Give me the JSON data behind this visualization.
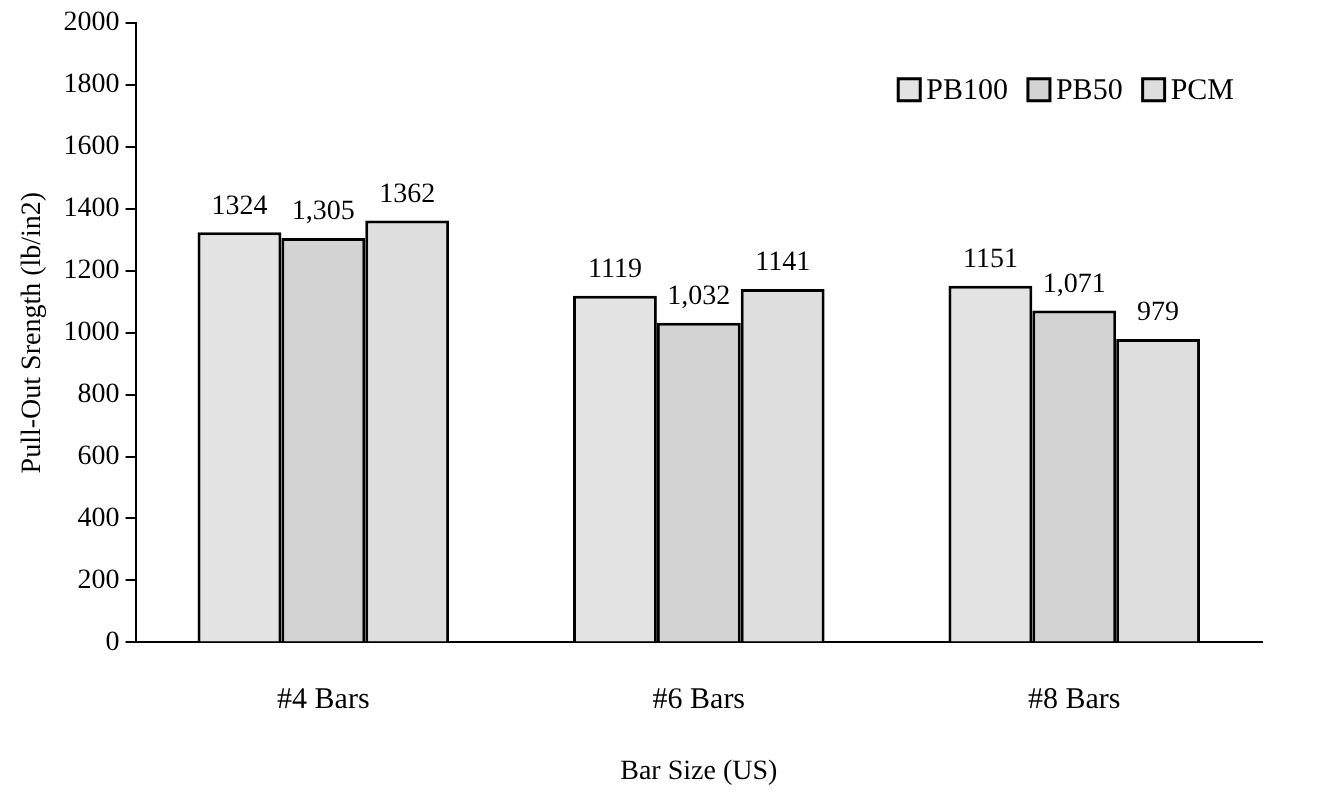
{
  "chart_data": {
    "type": "bar",
    "xlabel": "Bar Size (US)",
    "ylabel": "Pull-Out Srength (lb/in2)",
    "categories": [
      "#4 Bars",
      "#6 Bars",
      "#8 Bars"
    ],
    "series": [
      {
        "name": "PB100",
        "color": "#e3e3e3",
        "values": [
          1324,
          1119,
          1151
        ],
        "value_labels": [
          "1324",
          "1119",
          "1151"
        ]
      },
      {
        "name": "PB50",
        "color": "#d3d3d3",
        "values": [
          1305,
          1032,
          1071
        ],
        "value_labels": [
          "1,305",
          "1,032",
          "1,071"
        ]
      },
      {
        "name": "PCM",
        "color": "#dedede",
        "values": [
          1362,
          1141,
          979
        ],
        "value_labels": [
          "1362",
          "1141",
          "979"
        ]
      }
    ],
    "ylim": [
      0,
      2000
    ],
    "yticks": [
      0,
      200,
      400,
      600,
      800,
      1000,
      1200,
      1400,
      1600,
      1800,
      2000
    ],
    "grid": false,
    "legend": "top right"
  }
}
